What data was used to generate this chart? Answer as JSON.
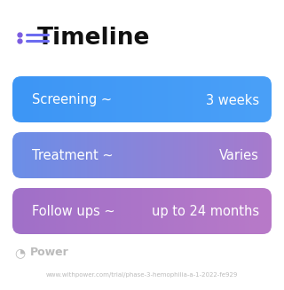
{
  "title": "Timeline",
  "background_color": "#ffffff",
  "rows": [
    {
      "label": "Screening ~",
      "value": "3 weeks",
      "color_left": "#3D96F5",
      "color_right": "#4AA0F8"
    },
    {
      "label": "Treatment ~",
      "value": "Varies",
      "color_left": "#6B8FE8",
      "color_right": "#A87ACC"
    },
    {
      "label": "Follow ups ~",
      "value": "up to 24 months",
      "color_left": "#A070C8",
      "color_right": "#B87AC8"
    }
  ],
  "footer_logo": "Power",
  "footer_url": "www.withpower.com/trial/phase-3-hemophilia-a-1-2022-fe929",
  "footer_color": "#bbbbbb",
  "title_fontsize": 19,
  "row_label_fontsize": 10.5,
  "row_value_fontsize": 10.5,
  "footer_fontsize": 5.0,
  "logo_fontsize": 9,
  "icon_color": "#7B5CE0",
  "icon_line_color": "#6B6BF0"
}
